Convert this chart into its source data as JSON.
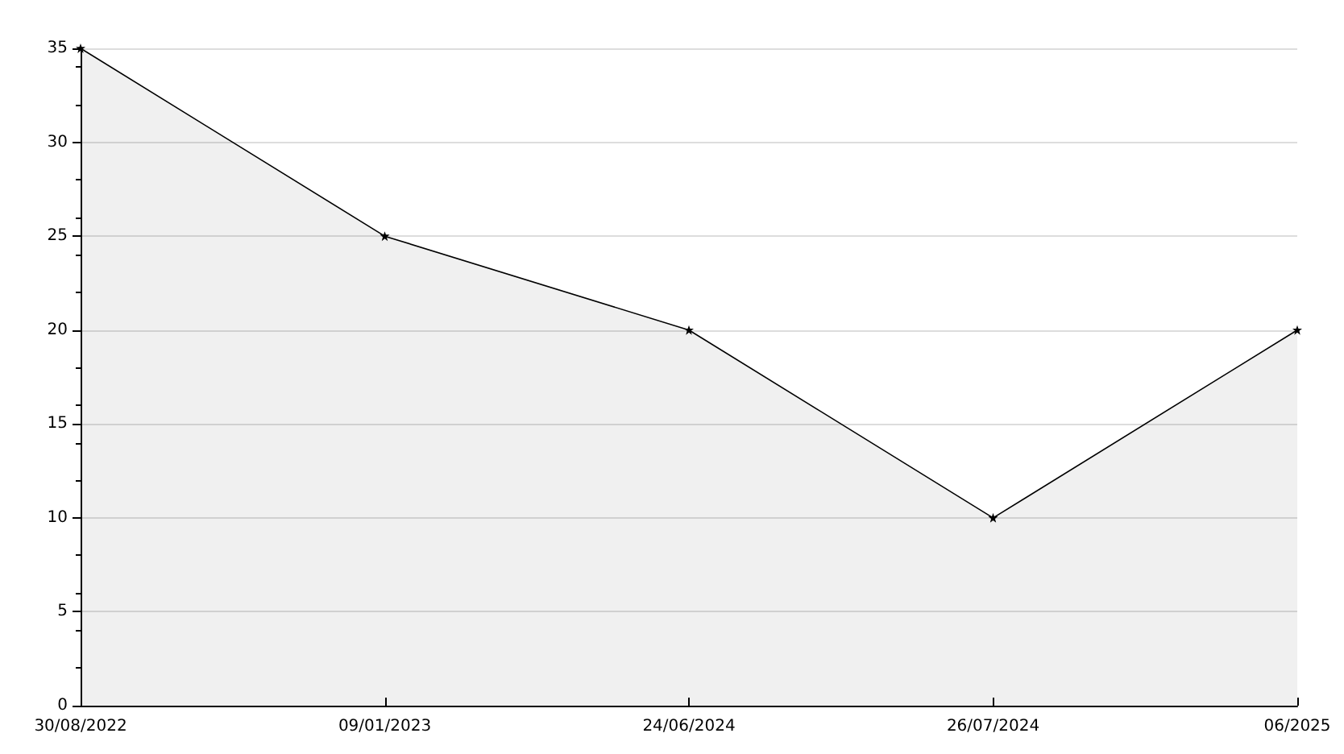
{
  "chart_data": {
    "type": "area",
    "categories": [
      "30/08/2022",
      "09/01/2023",
      "24/06/2024",
      "26/07/2024",
      "06/2025"
    ],
    "series": [
      {
        "color": "#000000",
        "values": [
          35,
          25,
          20,
          10,
          20
        ]
      }
    ],
    "ylim": [
      0,
      35
    ],
    "yticks": [
      0,
      5,
      10,
      15,
      20,
      25,
      30,
      35
    ],
    "grid": "y",
    "marker": "star",
    "line_style": "solid"
  }
}
